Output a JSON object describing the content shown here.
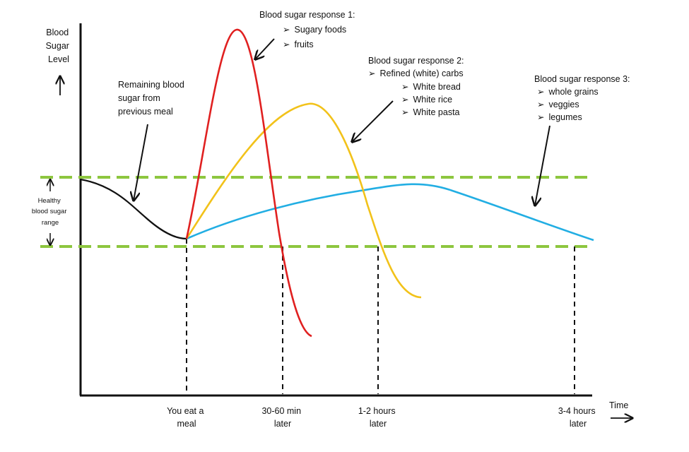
{
  "chart_data": {
    "type": "line",
    "ylabel": [
      "Blood",
      "Sugar",
      "Level"
    ],
    "xlabel": "Time",
    "band_label": [
      "Healthy",
      "blood sugar",
      "range"
    ],
    "x_ticks": [
      {
        "lines": [
          "You eat a",
          "meal"
        ]
      },
      {
        "lines": [
          "30-60 min",
          "later"
        ]
      },
      {
        "lines": [
          "1-2 hours",
          "later"
        ]
      },
      {
        "lines": [
          "3-4 hours",
          "later"
        ]
      }
    ],
    "annotations": {
      "remaining": {
        "lines": [
          "Remaining blood",
          "sugar from",
          "previous meal"
        ]
      },
      "response1": {
        "title": "Blood sugar response 1:",
        "items": [
          "Sugary foods",
          "fruits"
        ]
      },
      "response2": {
        "title": "Blood sugar response 2:",
        "items": [
          "Refined (white) carbs",
          "White bread",
          "White rice",
          "White pasta"
        ]
      },
      "response3": {
        "title": "Blood sugar response 3:",
        "items": [
          "whole grains",
          "veggies",
          "legumes"
        ]
      }
    },
    "bullet": "➢",
    "series_colors": {
      "baseline": "#111111",
      "response1": "#e02020",
      "response2": "#f2c21a",
      "response3": "#22aee3",
      "healthy_band": "#8dc63f"
    }
  }
}
